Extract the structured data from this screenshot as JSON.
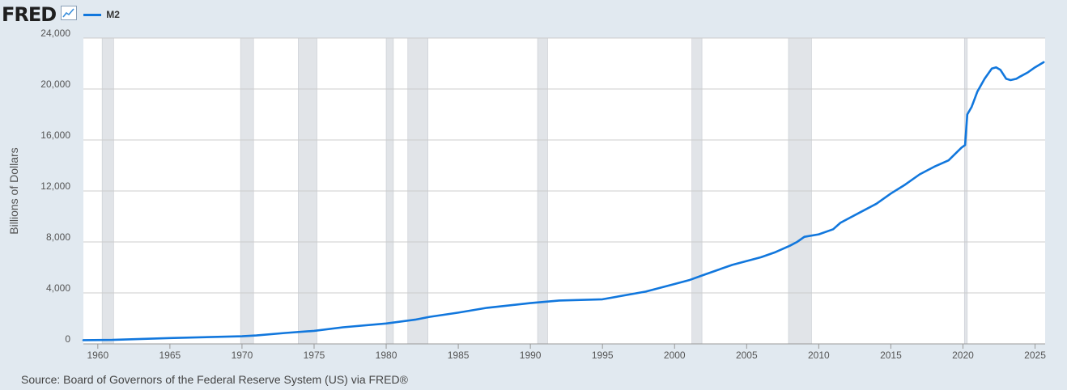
{
  "header": {
    "logo_text": "FRED",
    "logo_icon": "line-graph-icon",
    "legend_series": "M2"
  },
  "colors": {
    "series": "#1177dd",
    "recession": "#e1e4e8",
    "background": "#e1e9f0",
    "plot_bg": "#ffffff",
    "grid": "#cccccc"
  },
  "source_text": "Source: Board of Governors of the Federal Reserve System (US) via FRED®",
  "chart_data": {
    "type": "line",
    "title": "",
    "xlabel": "",
    "ylabel": "Billions of Dollars",
    "xlim": [
      1959.0,
      2025.7
    ],
    "ylim": [
      0,
      24000
    ],
    "grid": "horizontal",
    "legend_position": "top-left",
    "x_ticks": [
      "1960",
      "1965",
      "1970",
      "1975",
      "1980",
      "1985",
      "1990",
      "1995",
      "2000",
      "2005",
      "2010",
      "2015",
      "2020",
      "2025"
    ],
    "y_ticks": [
      "0",
      "4,000",
      "8,000",
      "12,000",
      "16,000",
      "20,000",
      "24,000"
    ],
    "recessions": [
      [
        1960.3,
        1961.1
      ],
      [
        1969.9,
        1970.8
      ],
      [
        1973.9,
        1975.2
      ],
      [
        1980.0,
        1980.5
      ],
      [
        1981.5,
        1982.9
      ],
      [
        1990.5,
        1991.2
      ],
      [
        2001.2,
        2001.9
      ],
      [
        2007.9,
        2009.5
      ],
      [
        2020.1,
        2020.3
      ]
    ],
    "series": [
      {
        "name": "M2",
        "x": [
          1959,
          1961,
          1965,
          1970,
          1971,
          1973,
          1975,
          1977,
          1980,
          1982,
          1983,
          1985,
          1987,
          1990,
          1992,
          1995,
          1998,
          2000,
          2001,
          2002,
          2003,
          2004,
          2005,
          2006,
          2007,
          2008,
          2008.5,
          2009,
          2010,
          2011,
          2011.5,
          2012,
          2013,
          2014,
          2015,
          2016,
          2017,
          2018,
          2019,
          2019.9,
          2020.15,
          2020.3,
          2020.6,
          2021,
          2021.5,
          2022,
          2022.3,
          2022.6,
          2023,
          2023.3,
          2023.7,
          2024,
          2024.5,
          2025,
          2025.6
        ],
        "y": [
          290,
          310,
          460,
          600,
          660,
          860,
          1020,
          1300,
          1600,
          1900,
          2120,
          2450,
          2830,
          3200,
          3400,
          3500,
          4100,
          4700,
          5000,
          5400,
          5800,
          6200,
          6500,
          6800,
          7200,
          7700,
          8000,
          8400,
          8600,
          9000,
          9500,
          9800,
          10400,
          11000,
          11800,
          12500,
          13300,
          13900,
          14400,
          15400,
          15600,
          18000,
          18600,
          19800,
          20800,
          21600,
          21700,
          21500,
          20800,
          20700,
          20800,
          21000,
          21300,
          21700,
          22100
        ]
      }
    ]
  }
}
